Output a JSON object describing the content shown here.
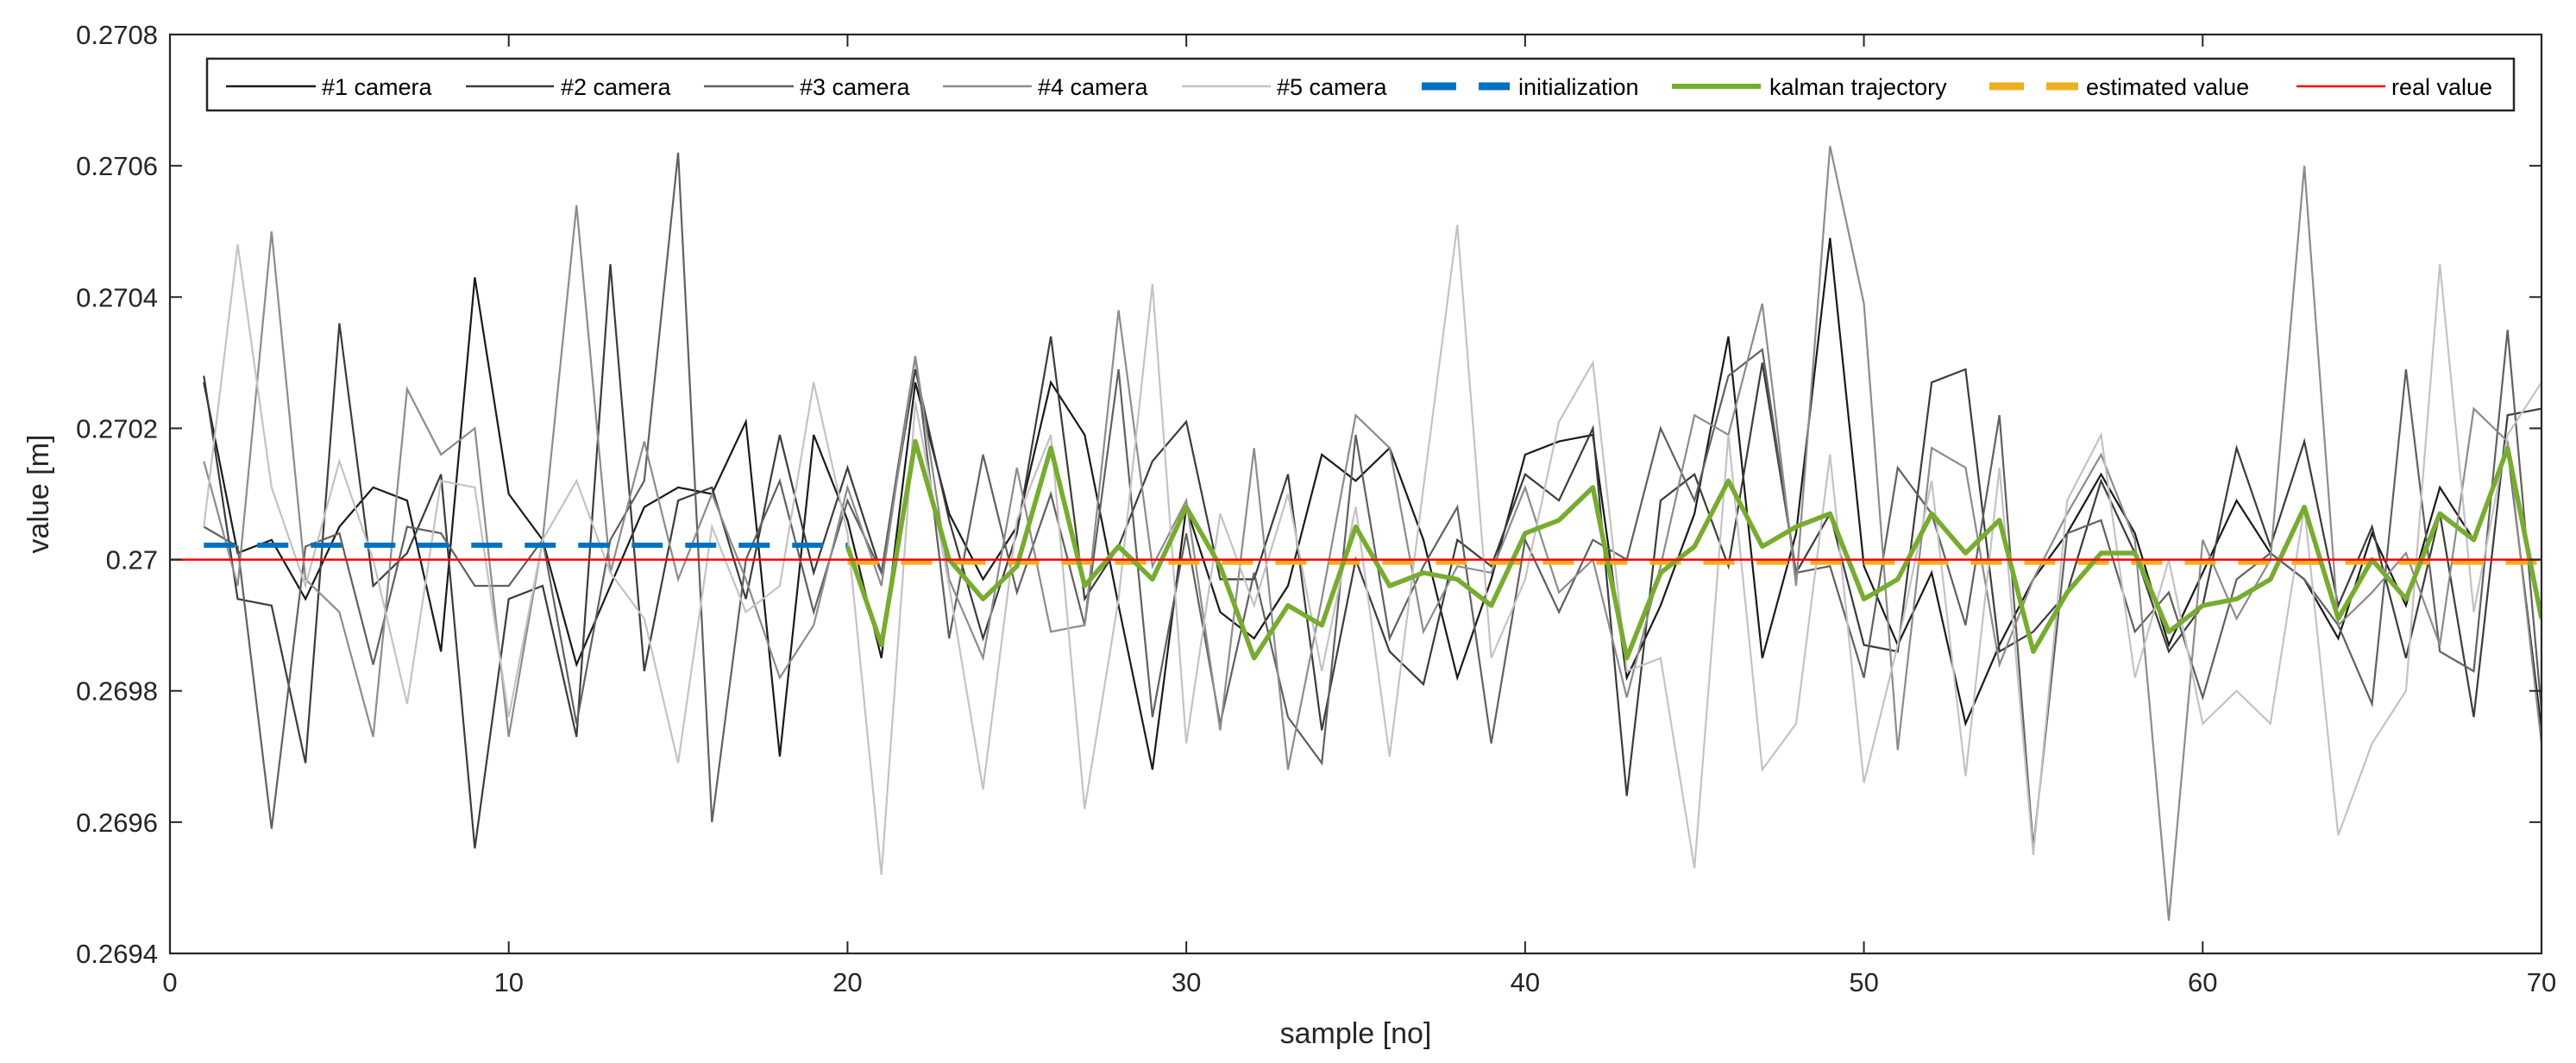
{
  "chart_data": {
    "type": "line",
    "title": "",
    "xlabel": "sample [no]",
    "ylabel": "value [m]",
    "xlim": [
      0,
      70
    ],
    "ylim": [
      0.2694,
      0.2708
    ],
    "xticks": [
      0,
      10,
      20,
      30,
      40,
      50,
      60,
      70
    ],
    "xtick_labels": [
      "0",
      "10",
      "20",
      "30",
      "40",
      "50",
      "60",
      "70"
    ],
    "yticks": [
      0.2694,
      0.2696,
      0.2698,
      0.27,
      0.2702,
      0.2704,
      0.2706,
      0.2708
    ],
    "ytick_labels": [
      "0.2694",
      "0.2696",
      "0.2698",
      "0.27",
      "0.2702",
      "0.2704",
      "0.2706",
      "0.2708"
    ],
    "grid": false,
    "legend_position": "top",
    "x": [
      1,
      2,
      3,
      4,
      5,
      6,
      7,
      8,
      9,
      10,
      11,
      12,
      13,
      14,
      15,
      16,
      17,
      18,
      19,
      20,
      21,
      22,
      23,
      24,
      25,
      26,
      27,
      28,
      29,
      30,
      31,
      32,
      33,
      34,
      35,
      36,
      37,
      38,
      39,
      40,
      41,
      42,
      43,
      44,
      45,
      46,
      47,
      48,
      49,
      50,
      51,
      52,
      53,
      54,
      55,
      56,
      57,
      58,
      59,
      60,
      61,
      62,
      63,
      64,
      65,
      66,
      67,
      68,
      69,
      70
    ],
    "series": [
      {
        "name": "#1 camera",
        "color": "#1a1a1a",
        "style": "solid",
        "width": 2.2,
        "values": [
          0.27027,
          0.27001,
          0.27003,
          0.26994,
          0.27005,
          0.27011,
          0.27009,
          0.26986,
          0.27043,
          0.2701,
          0.27003,
          0.26984,
          0.26996,
          0.27008,
          0.27011,
          0.2701,
          0.27021,
          0.2697,
          0.27019,
          0.27006,
          0.26985,
          0.27027,
          0.27007,
          0.26997,
          0.27005,
          0.27027,
          0.27019,
          0.26993,
          0.26968,
          0.27008,
          0.26992,
          0.26988,
          0.26996,
          0.27016,
          0.27012,
          0.27017,
          0.27003,
          0.26982,
          0.26997,
          0.27016,
          0.27018,
          0.27019,
          0.26982,
          0.26993,
          0.27007,
          0.27034,
          0.26985,
          0.27004,
          0.27049,
          0.26999,
          0.26987,
          0.26998,
          0.26975,
          0.26987,
          0.26997,
          0.27004,
          0.27013,
          0.27004,
          0.26987,
          0.26998,
          0.27009,
          0.27001,
          0.26997,
          0.26988,
          0.27004,
          0.26993,
          0.27011,
          0.27003,
          0.27017,
          0.26974
        ]
      },
      {
        "name": "#2 camera",
        "color": "#3c3c3c",
        "style": "solid",
        "width": 2.2,
        "values": [
          0.27028,
          0.26994,
          0.26993,
          0.26969,
          0.27036,
          0.26996,
          0.27001,
          0.27013,
          0.26956,
          0.26994,
          0.26996,
          0.26973,
          0.27045,
          0.26983,
          0.27009,
          0.27011,
          0.26994,
          0.27019,
          0.26998,
          0.27014,
          0.26998,
          0.27029,
          0.27006,
          0.26988,
          0.27004,
          0.27034,
          0.26994,
          0.27002,
          0.27015,
          0.27021,
          0.26997,
          0.26997,
          0.27013,
          0.26974,
          0.27,
          0.26986,
          0.26981,
          0.27003,
          0.26999,
          0.27013,
          0.27009,
          0.2702,
          0.26964,
          0.27009,
          0.27013,
          0.26999,
          0.2703,
          0.26998,
          0.27007,
          0.26987,
          0.26986,
          0.27027,
          0.27029,
          0.26986,
          0.26989,
          0.26995,
          0.27012,
          0.27001,
          0.26986,
          0.26993,
          0.27017,
          0.27002,
          0.27018,
          0.26993,
          0.27005,
          0.26985,
          0.27007,
          0.26976,
          0.27022,
          0.27023
        ]
      },
      {
        "name": "#3 camera",
        "color": "#606060",
        "style": "solid",
        "width": 2.2,
        "values": [
          0.27005,
          0.27002,
          0.26959,
          0.27002,
          0.27004,
          0.26984,
          0.27005,
          0.27004,
          0.26996,
          0.26996,
          0.27003,
          0.26975,
          0.27003,
          0.27012,
          0.27062,
          0.2696,
          0.27,
          0.27012,
          0.26992,
          0.27009,
          0.26998,
          0.27031,
          0.26988,
          0.27016,
          0.26995,
          0.2701,
          0.2699,
          0.27029,
          0.26976,
          0.27004,
          0.26975,
          0.26998,
          0.26976,
          0.26969,
          0.27019,
          0.26988,
          0.26999,
          0.27008,
          0.26972,
          0.27003,
          0.26992,
          0.27003,
          0.27,
          0.2702,
          0.27009,
          0.27028,
          0.27032,
          0.26998,
          0.26999,
          0.26982,
          0.27014,
          0.27007,
          0.2699,
          0.27022,
          0.26956,
          0.27004,
          0.27006,
          0.26989,
          0.26995,
          0.26979,
          0.26997,
          0.27001,
          0.26997,
          0.2699,
          0.26978,
          0.27029,
          0.26986,
          0.26983,
          0.27035,
          0.26977
        ]
      },
      {
        "name": "#4 camera",
        "color": "#8c8c8c",
        "style": "solid",
        "width": 2.2,
        "values": [
          0.27015,
          0.26996,
          0.2705,
          0.26997,
          0.26992,
          0.26973,
          0.27026,
          0.27016,
          0.2702,
          0.26973,
          0.27003,
          0.27054,
          0.26998,
          0.27018,
          0.26997,
          0.2701,
          0.26997,
          0.26982,
          0.2699,
          0.27011,
          0.26996,
          0.27031,
          0.26997,
          0.26985,
          0.27014,
          0.26989,
          0.2699,
          0.27038,
          0.26999,
          0.27009,
          0.26974,
          0.27017,
          0.26968,
          0.26994,
          0.27022,
          0.27017,
          0.26989,
          0.26999,
          0.26998,
          0.27011,
          0.26995,
          0.27,
          0.26979,
          0.26999,
          0.27022,
          0.27019,
          0.27039,
          0.26996,
          0.27063,
          0.27039,
          0.26971,
          0.27017,
          0.27014,
          0.26984,
          0.26997,
          0.27007,
          0.27016,
          0.27003,
          0.26945,
          0.27003,
          0.26991,
          0.27,
          0.2706,
          0.2699,
          0.26995,
          0.27001,
          0.26987,
          0.27023,
          0.27018,
          0.26972
        ]
      },
      {
        "name": "#5 camera",
        "color": "#c3c3c3",
        "style": "solid",
        "width": 2.2,
        "values": [
          0.27005,
          0.27048,
          0.27011,
          0.26996,
          0.27015,
          0.27,
          0.26978,
          0.27012,
          0.27011,
          0.26976,
          0.27003,
          0.27012,
          0.26998,
          0.26991,
          0.26969,
          0.27005,
          0.26992,
          0.26996,
          0.27027,
          0.27004,
          0.26952,
          0.27024,
          0.26996,
          0.26965,
          0.27006,
          0.27019,
          0.26962,
          0.26994,
          0.27042,
          0.26972,
          0.27007,
          0.26993,
          0.2701,
          0.26983,
          0.27008,
          0.2697,
          0.27011,
          0.27051,
          0.26985,
          0.26997,
          0.27021,
          0.2703,
          0.26983,
          0.26985,
          0.26953,
          0.27019,
          0.26968,
          0.26975,
          0.27016,
          0.26966,
          0.26987,
          0.27012,
          0.26967,
          0.27014,
          0.26955,
          0.27009,
          0.27019,
          0.26982,
          0.27,
          0.26975,
          0.2698,
          0.26975,
          0.27008,
          0.26958,
          0.26972,
          0.2698,
          0.27045,
          0.26992,
          0.27019,
          0.27027
        ]
      }
    ],
    "overlays": [
      {
        "name": "initialization",
        "color": "#0072bd",
        "style": "dashed",
        "width": 6,
        "x_range": [
          1,
          20
        ],
        "value": 0.270022
      },
      {
        "name": "kalman trajectory",
        "color": "#77ac30",
        "style": "solid",
        "width": 5.5,
        "x_start": 20,
        "values": [
          0.27002,
          0.26987,
          0.27018,
          0.27,
          0.26994,
          0.26999,
          0.27017,
          0.26996,
          0.27002,
          0.26997,
          0.27008,
          0.26999,
          0.26985,
          0.26993,
          0.2699,
          0.27005,
          0.26996,
          0.26998,
          0.26997,
          0.26993,
          0.27004,
          0.27006,
          0.27011,
          0.26985,
          0.26998,
          0.27002,
          0.27012,
          0.27002,
          0.27005,
          0.27007,
          0.26994,
          0.26997,
          0.27007,
          0.27001,
          0.27006,
          0.26986,
          0.26995,
          0.27001,
          0.27001,
          0.26989,
          0.26993,
          0.26994,
          0.26997,
          0.27008,
          0.26991,
          0.27,
          0.26994,
          0.27007,
          0.27003,
          0.27017,
          0.26991
        ]
      },
      {
        "name": "estimated value",
        "color": "#edb120",
        "style": "dashed",
        "width": 6,
        "x_range": [
          20,
          70
        ],
        "value": 0.269996
      },
      {
        "name": "real value",
        "color": "#ff0000",
        "style": "solid",
        "width": 2.5,
        "x_range": [
          0,
          70
        ],
        "value": 0.27
      }
    ],
    "legend": [
      "#1 camera",
      "#2 camera",
      "#3 camera",
      "#4 camera",
      "#5 camera",
      "initialization",
      "kalman trajectory",
      "estimated value",
      "real value"
    ]
  }
}
